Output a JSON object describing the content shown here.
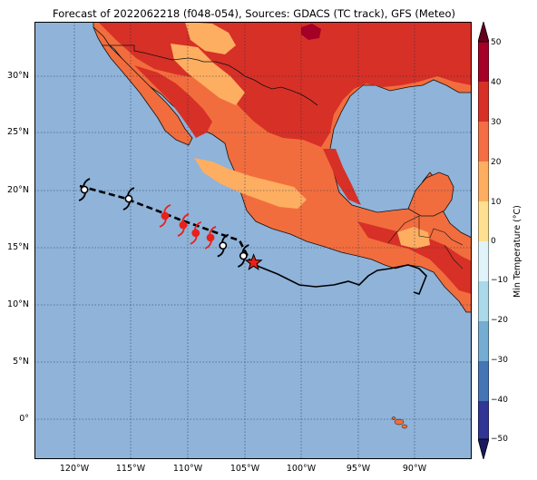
{
  "title": "Forecast of 2022062218 (f048-054), Sources: GDACS (TC track), GFS (Meteo)",
  "lat_labels": [
    "30°N",
    "25°N",
    "20°N",
    "15°N",
    "10°N",
    "5°N",
    "0°"
  ],
  "lon_labels": [
    "120°W",
    "115°W",
    "110°W",
    "105°W",
    "100°W",
    "95°W",
    "90°W"
  ],
  "colorbar": {
    "label": "Min Temperature (°C)",
    "ticks": [
      "50",
      "40",
      "30",
      "20",
      "10",
      "0",
      "−10",
      "−20",
      "−30",
      "−40",
      "−50"
    ]
  },
  "colors": {
    "ocean": "#8fb3d9",
    "land_warm": "#f26d3d",
    "land_hot": "#d73027",
    "land_mild": "#fdae61",
    "land_extreme": "#a50026",
    "current_position": "#e8201c",
    "forecast_symbol": "#e8201c"
  },
  "storm_symbols": [
    {
      "lon": -119.1,
      "lat": 20.3,
      "type": "past"
    },
    {
      "lon": -115.2,
      "lat": 19.5,
      "type": "past"
    },
    {
      "lon": -112.0,
      "lat": 18.0,
      "type": "forecast"
    },
    {
      "lon": -110.4,
      "lat": 17.2,
      "type": "forecast"
    },
    {
      "lon": -109.3,
      "lat": 16.5,
      "type": "forecast"
    },
    {
      "lon": -108.0,
      "lat": 16.1,
      "type": "forecast"
    },
    {
      "lon": -106.9,
      "lat": 15.4,
      "type": "past"
    },
    {
      "lon": -105.1,
      "lat": 14.5,
      "type": "past"
    }
  ],
  "current_position": {
    "lon": -104.2,
    "lat": 13.9
  }
}
